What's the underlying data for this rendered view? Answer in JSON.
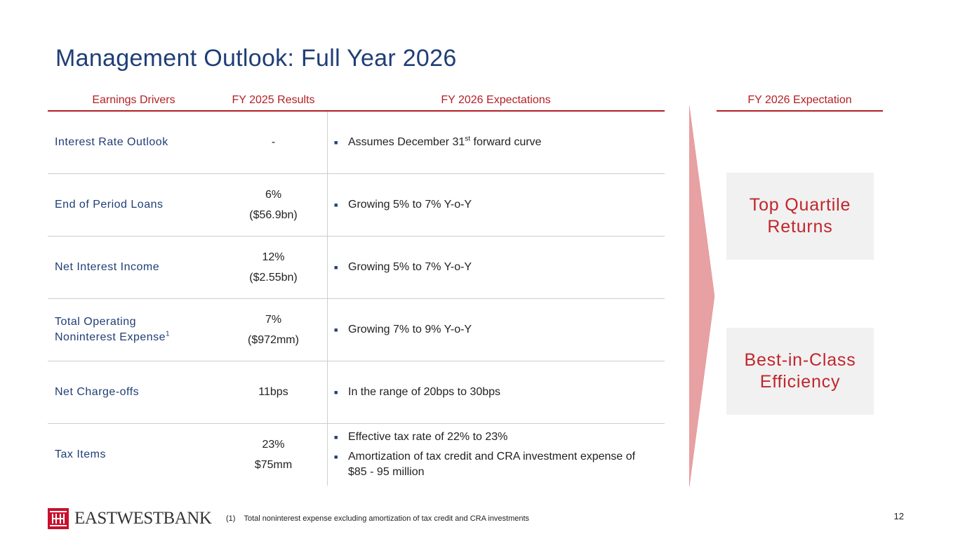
{
  "title": "Management Outlook: Full Year 2026",
  "headers": {
    "drivers": "Earnings Drivers",
    "results": "FY 2025 Results",
    "expectations": "FY 2026 Expectations",
    "right": "FY 2026 Expectation"
  },
  "rows": [
    {
      "driver": "Interest Rate Outlook",
      "result_lines": [
        "-"
      ],
      "bullets": [
        {
          "pre": "Assumes December 31",
          "sup": "st",
          "post": " forward curve"
        }
      ]
    },
    {
      "driver": "End of Period Loans",
      "result_lines": [
        "6%",
        "($56.9bn)"
      ],
      "bullets": [
        {
          "text": "Growing 5% to 7% Y-o-Y"
        }
      ]
    },
    {
      "driver": "Net Interest Income",
      "result_lines": [
        "12%",
        "($2.55bn)"
      ],
      "bullets": [
        {
          "text": "Growing 5% to 7% Y-o-Y"
        }
      ]
    },
    {
      "driver_line1": "Total Operating",
      "driver_line2": "Noninterest Expense",
      "driver_sup": "1",
      "result_lines": [
        "7%",
        "($972mm)"
      ],
      "bullets": [
        {
          "text": "Growing 7% to 9% Y-o-Y"
        }
      ]
    },
    {
      "driver": "Net Charge-offs",
      "result_lines": [
        "11bps"
      ],
      "bullets": [
        {
          "text": "In the range of 20bps to 30bps"
        }
      ]
    },
    {
      "driver": "Tax Items",
      "result_lines": [
        "23%",
        "$75mm"
      ],
      "bullets": [
        {
          "text": "Effective tax rate of 22% to 23%"
        },
        {
          "text": "Amortization of tax credit and CRA investment expense of $85 - 95 million"
        }
      ]
    }
  ],
  "bullet_char": "■",
  "outcomes": [
    {
      "line1": "Top Quartile",
      "line2": "Returns"
    },
    {
      "line1": "Best-in-Class",
      "line2": "Efficiency"
    }
  ],
  "logo": {
    "text": "EASTWESTBANK"
  },
  "footnote": {
    "number": "(1)",
    "text": "Total noninterest expense excluding amortization of tax credit and CRA investments"
  },
  "page_number": "12",
  "colors": {
    "navy": "#1f3e76",
    "red": "#b22026",
    "arrow": "#e7a1a3",
    "box": "#f1f1f1"
  }
}
